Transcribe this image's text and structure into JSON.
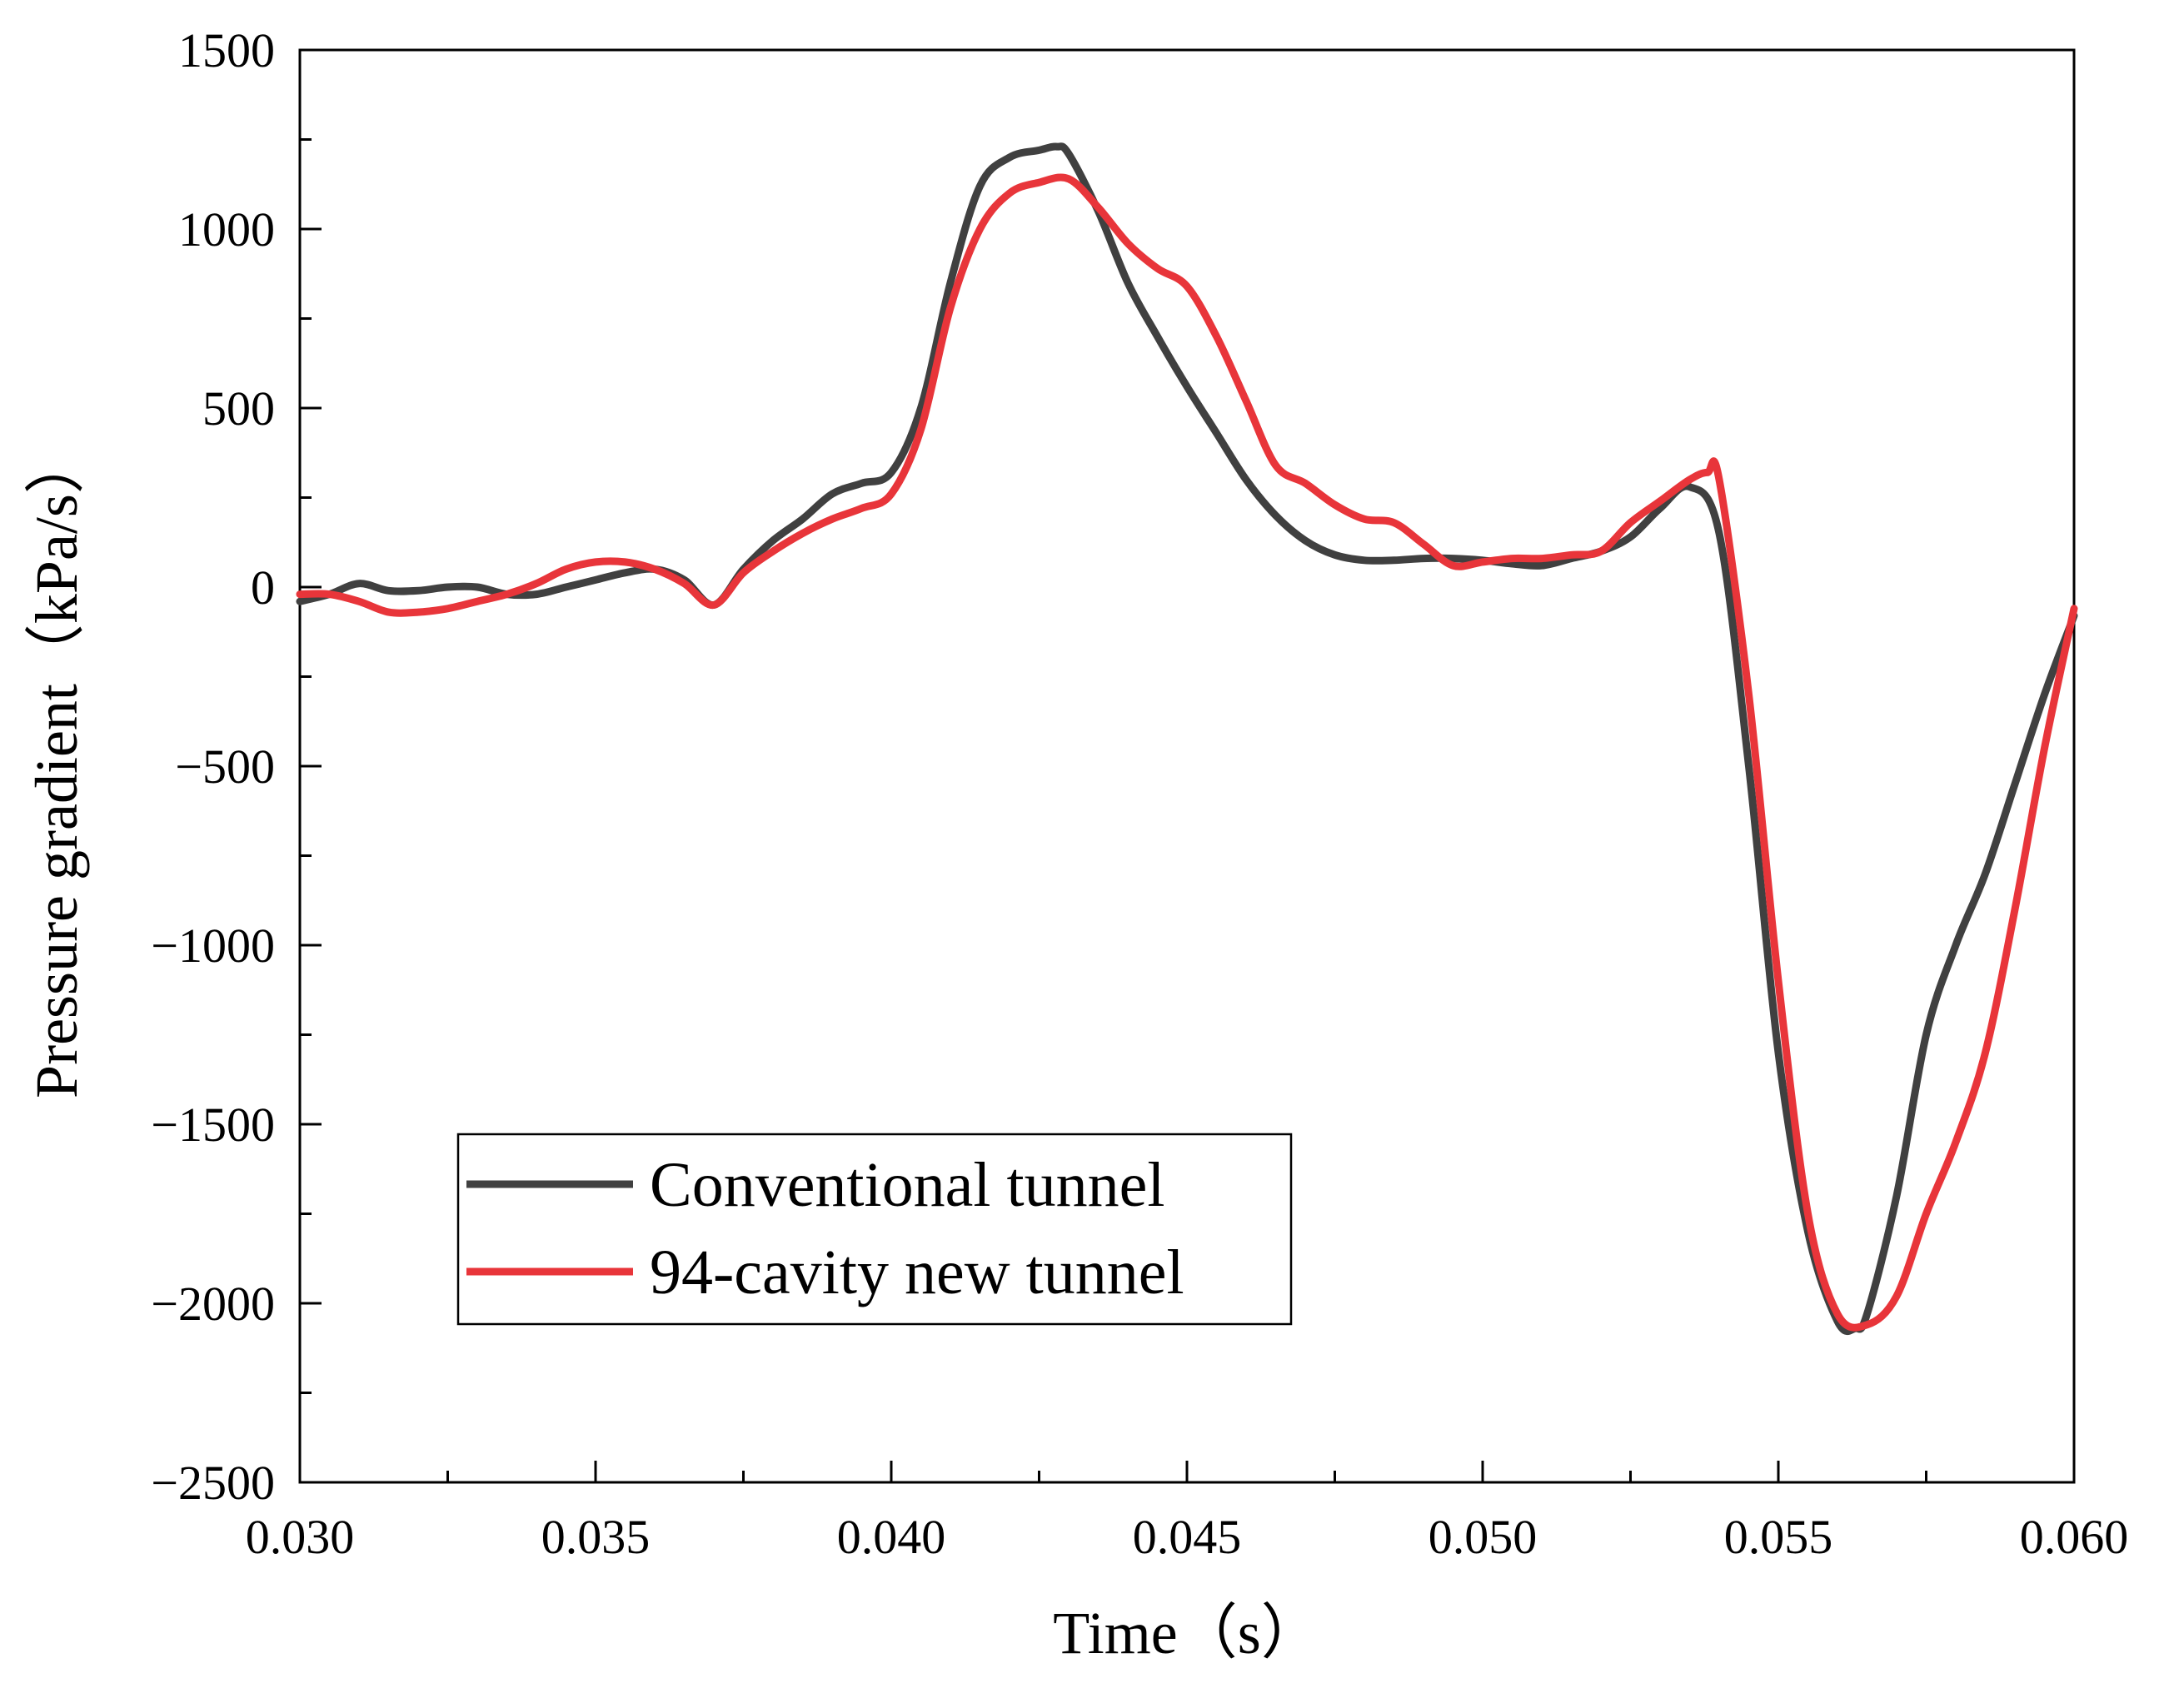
{
  "chart_data": {
    "type": "line",
    "title": "",
    "xlabel": "Time（s）",
    "ylabel": "Pressure gradient（kPa/s）",
    "xlim": [
      0.03,
      0.06
    ],
    "ylim": [
      -2500,
      1500
    ],
    "x_ticks": [
      0.03,
      0.035,
      0.04,
      0.045,
      0.05,
      0.055,
      0.06
    ],
    "x_tick_labels": [
      "0.030",
      "0.035",
      "0.040",
      "0.045",
      "0.050",
      "0.055",
      "0.060"
    ],
    "y_ticks": [
      1500,
      1000,
      500,
      0,
      -500,
      -1000,
      -1500,
      -2000,
      -2500
    ],
    "y_tick_labels": [
      "1500",
      "1000",
      "500",
      "0",
      "−500",
      "−1000",
      "−1500",
      "−2000",
      "−2500"
    ],
    "grid": false,
    "legend_position": "bottom-left",
    "series": [
      {
        "name": "Conventional tunnel",
        "color": "#404040",
        "x": [
          0.03,
          0.0305,
          0.031,
          0.0315,
          0.032,
          0.0325,
          0.033,
          0.0335,
          0.034,
          0.0345,
          0.035,
          0.0355,
          0.036,
          0.0365,
          0.037,
          0.0375,
          0.038,
          0.0385,
          0.039,
          0.0395,
          0.04,
          0.0405,
          0.041,
          0.0415,
          0.042,
          0.0425,
          0.0428,
          0.043,
          0.0435,
          0.044,
          0.0445,
          0.045,
          0.0455,
          0.046,
          0.0465,
          0.047,
          0.0475,
          0.048,
          0.0485,
          0.049,
          0.0495,
          0.05,
          0.0505,
          0.051,
          0.0515,
          0.052,
          0.0525,
          0.053,
          0.0535,
          0.054,
          0.0545,
          0.055,
          0.0555,
          0.056,
          0.0563,
          0.0565,
          0.057,
          0.0575,
          0.058,
          0.0585,
          0.059,
          0.0595,
          0.06
        ],
        "y": [
          -40,
          -20,
          10,
          -10,
          -10,
          0,
          0,
          -20,
          -20,
          0,
          20,
          40,
          50,
          20,
          -50,
          50,
          130,
          190,
          260,
          290,
          320,
          500,
          850,
          1120,
          1200,
          1220,
          1230,
          1210,
          1050,
          850,
          700,
          560,
          430,
          300,
          200,
          130,
          90,
          75,
          75,
          80,
          80,
          75,
          65,
          60,
          80,
          100,
          140,
          220,
          280,
          150,
          -500,
          -1300,
          -1800,
          -2050,
          -2070,
          -2030,
          -1700,
          -1250,
          -1000,
          -800,
          -550,
          -300,
          -80
        ]
      },
      {
        "name": "94-cavity new tunnel",
        "color": "#e8353a",
        "x": [
          0.03,
          0.0305,
          0.031,
          0.0315,
          0.032,
          0.0325,
          0.033,
          0.0335,
          0.034,
          0.0345,
          0.035,
          0.0355,
          0.036,
          0.0365,
          0.037,
          0.0375,
          0.038,
          0.0385,
          0.039,
          0.0395,
          0.04,
          0.0405,
          0.041,
          0.0415,
          0.042,
          0.0425,
          0.043,
          0.0435,
          0.044,
          0.0445,
          0.045,
          0.0455,
          0.046,
          0.0465,
          0.047,
          0.0475,
          0.048,
          0.0485,
          0.049,
          0.0495,
          0.05,
          0.0505,
          0.051,
          0.0515,
          0.052,
          0.0525,
          0.053,
          0.0535,
          0.0538,
          0.054,
          0.0545,
          0.055,
          0.0555,
          0.056,
          0.0565,
          0.057,
          0.0575,
          0.058,
          0.0585,
          0.059,
          0.0595,
          0.06
        ],
        "y": [
          -20,
          -20,
          -40,
          -70,
          -70,
          -60,
          -40,
          -20,
          10,
          50,
          70,
          70,
          50,
          10,
          -50,
          40,
          100,
          150,
          190,
          220,
          260,
          440,
          780,
          1000,
          1100,
          1130,
          1140,
          1060,
          960,
          890,
          840,
          700,
          520,
          340,
          290,
          230,
          190,
          180,
          120,
          60,
          70,
          80,
          80,
          90,
          100,
          180,
          240,
          300,
          320,
          300,
          -300,
          -1100,
          -1750,
          -2030,
          -2060,
          -1980,
          -1750,
          -1550,
          -1300,
          -900,
          -450,
          -60
        ]
      }
    ]
  }
}
